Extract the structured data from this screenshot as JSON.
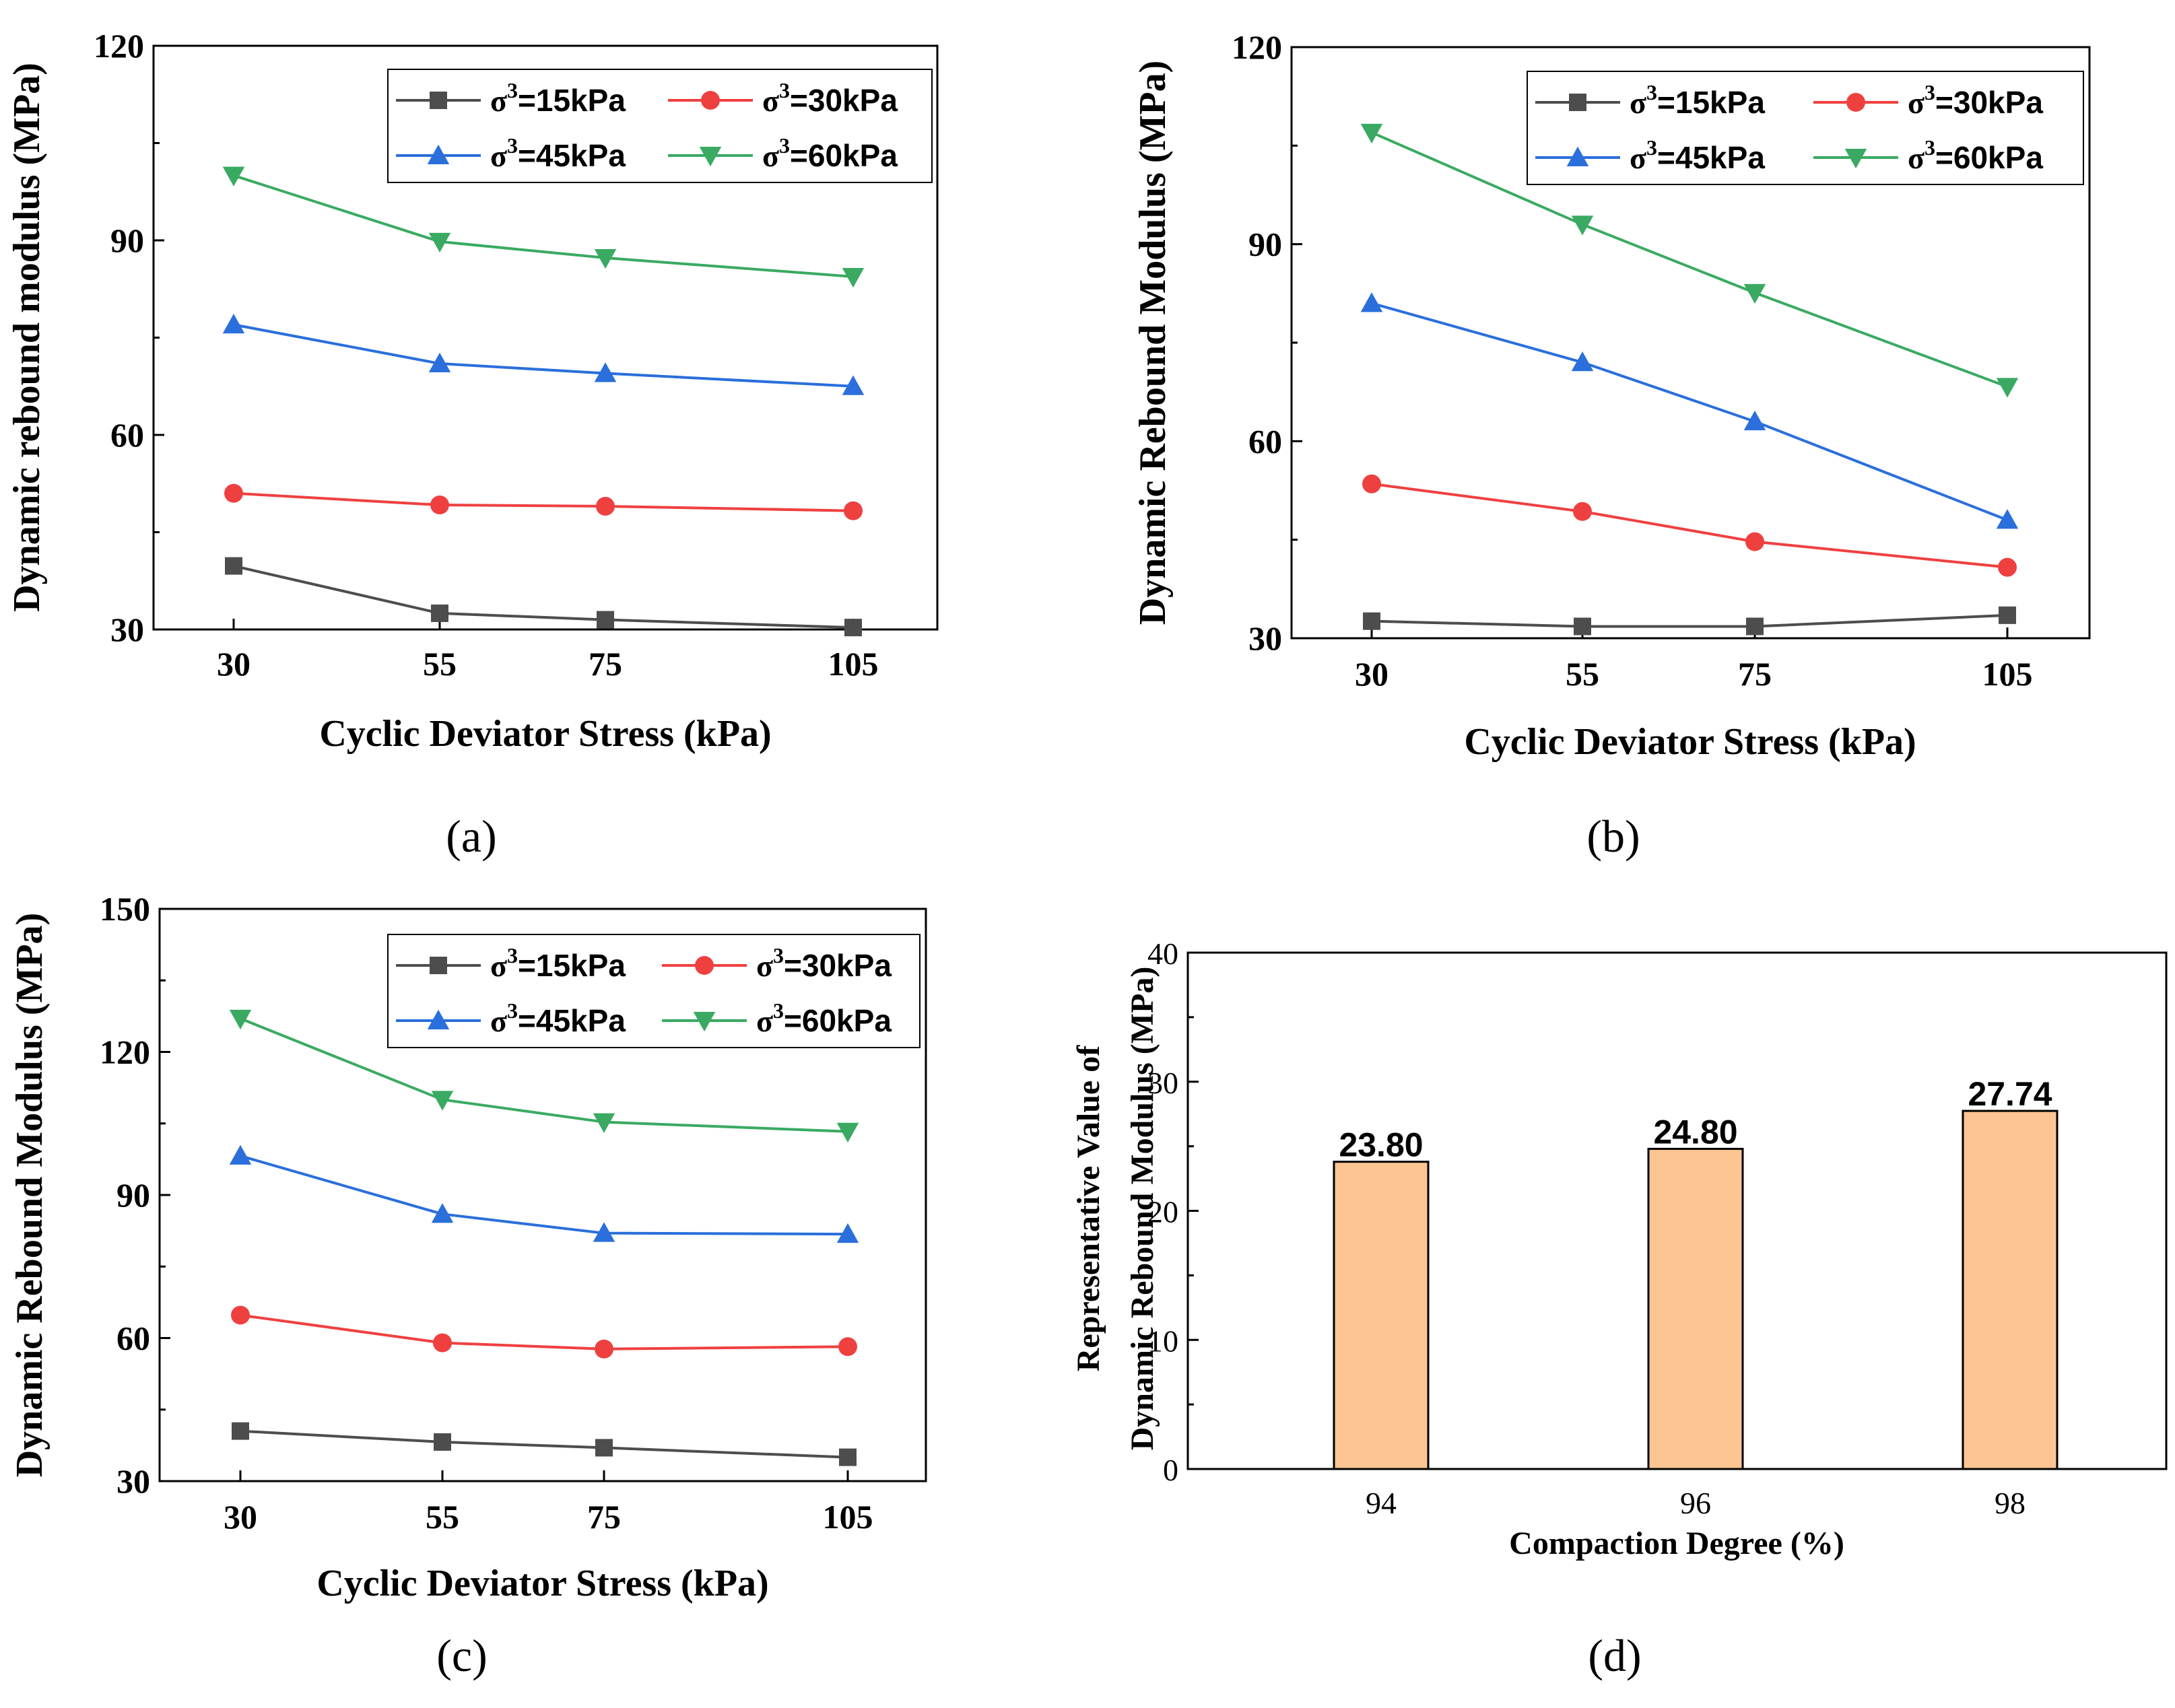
{
  "colors": {
    "s15": "#4d4d4d",
    "s30": "#ef4040",
    "s45": "#2a6fdb",
    "s60": "#3aaa62",
    "bar_fill": "#fcc592",
    "bar_stroke": "#000000"
  },
  "chart_data": [
    {
      "id": "a",
      "type": "line",
      "panel_label": "(a)",
      "xlabel": "Cyclic Deviator Stress (kPa)",
      "ylabel": "Dynamic rebound modulus (MPa)",
      "categories": [
        "30",
        "55",
        "75",
        "105"
      ],
      "ylim": [
        30,
        120
      ],
      "yticks": [
        "30",
        "60",
        "90",
        "120"
      ],
      "legend_position": "top-right",
      "series": [
        {
          "key": "s15",
          "marker": "square",
          "name_prefix": "σ",
          "name_sup": "3",
          "name_suffix": "=15kPa",
          "values": [
            39.8,
            32.5,
            31.5,
            30.3
          ]
        },
        {
          "key": "s30",
          "marker": "circle",
          "name_prefix": "σ",
          "name_sup": "3",
          "name_suffix": "=30kPa",
          "values": [
            51.0,
            49.2,
            49.0,
            48.3
          ]
        },
        {
          "key": "s45",
          "marker": "triangle-up",
          "name_prefix": "σ",
          "name_sup": "3",
          "name_suffix": "=45kPa",
          "values": [
            77.0,
            71.0,
            69.5,
            67.5
          ]
        },
        {
          "key": "s60",
          "marker": "triangle-down",
          "name_prefix": "σ",
          "name_sup": "3",
          "name_suffix": "=60kPa",
          "values": [
            100.0,
            89.8,
            87.3,
            84.4
          ]
        }
      ]
    },
    {
      "id": "b",
      "type": "line",
      "panel_label": "(b)",
      "xlabel": "Cyclic Deviator Stress (kPa)",
      "ylabel": "Dynamic Rebound Modulus (MPa)",
      "categories": [
        "30",
        "55",
        "75",
        "105"
      ],
      "ylim": [
        30,
        120
      ],
      "yticks": [
        "30",
        "60",
        "90",
        "120"
      ],
      "legend_position": "top-right",
      "series": [
        {
          "key": "s15",
          "marker": "square",
          "name_prefix": "σ",
          "name_sup": "3",
          "name_suffix": "=15kPa",
          "values": [
            32.6,
            31.8,
            31.8,
            33.5
          ]
        },
        {
          "key": "s30",
          "marker": "circle",
          "name_prefix": "σ",
          "name_sup": "3",
          "name_suffix": "=30kPa",
          "values": [
            53.5,
            49.3,
            44.7,
            40.8
          ]
        },
        {
          "key": "s45",
          "marker": "triangle-up",
          "name_prefix": "σ",
          "name_sup": "3",
          "name_suffix": "=45kPa",
          "values": [
            81.0,
            72.0,
            63.0,
            48.0
          ]
        },
        {
          "key": "s60",
          "marker": "triangle-down",
          "name_prefix": "σ",
          "name_sup": "3",
          "name_suffix": "=60kPa",
          "values": [
            107.0,
            93.0,
            82.6,
            68.3
          ]
        }
      ]
    },
    {
      "id": "c",
      "type": "line",
      "panel_label": "(c)",
      "xlabel": "Cyclic Deviator Stress (kPa)",
      "ylabel": "Dynamic Rebound Modulus (MPa)",
      "categories": [
        "30",
        "55",
        "75",
        "105"
      ],
      "ylim": [
        30,
        150
      ],
      "yticks": [
        "30",
        "60",
        "90",
        "120",
        "150"
      ],
      "legend_position": "top-right",
      "series": [
        {
          "key": "s15",
          "marker": "square",
          "name_prefix": "σ",
          "name_sup": "3",
          "name_suffix": "=15kPa",
          "values": [
            40.5,
            38.2,
            37.0,
            35.0
          ]
        },
        {
          "key": "s30",
          "marker": "circle",
          "name_prefix": "σ",
          "name_sup": "3",
          "name_suffix": "=30kPa",
          "values": [
            64.8,
            59.0,
            57.7,
            58.2
          ]
        },
        {
          "key": "s45",
          "marker": "triangle-up",
          "name_prefix": "σ",
          "name_sup": "3",
          "name_suffix": "=45kPa",
          "values": [
            98.2,
            86.0,
            82.0,
            81.8
          ]
        },
        {
          "key": "s60",
          "marker": "triangle-down",
          "name_prefix": "σ",
          "name_sup": "3",
          "name_suffix": "=60kPa",
          "values": [
            127.0,
            110.0,
            105.3,
            103.3
          ]
        }
      ]
    },
    {
      "id": "d",
      "type": "bar",
      "panel_label": "(d)",
      "xlabel": "Compaction Degree (%)",
      "ylabel_line1": "Representative Value of",
      "ylabel_line2": "Dynamic Rebound Modulus (MPa)",
      "categories": [
        "94",
        "96",
        "98"
      ],
      "values": [
        23.8,
        24.8,
        27.74
      ],
      "value_labels": [
        "23.80",
        "24.80",
        "27.74"
      ],
      "ylim": [
        0,
        40
      ],
      "yticks": [
        "0",
        "10",
        "20",
        "30",
        "40"
      ]
    }
  ]
}
